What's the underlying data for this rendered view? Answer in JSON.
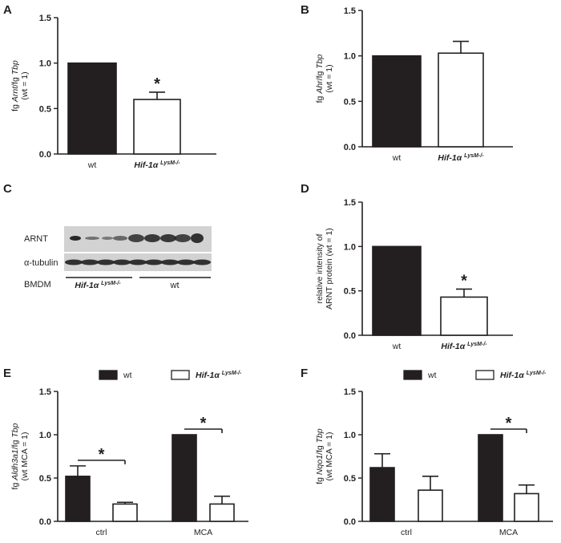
{
  "panel_labels": [
    "A",
    "B",
    "C",
    "D",
    "E",
    "F"
  ],
  "genotype": {
    "base": "Hif-1α",
    "sup": "LysM-/-"
  },
  "chart_data": [
    {
      "panel": "A",
      "type": "bar",
      "categories": [
        "wt",
        "Hif-1α LysM-/-"
      ],
      "values": [
        1.0,
        0.6
      ],
      "errors": [
        0,
        0.08
      ],
      "ylabel_line1": {
        "pre": "fg ",
        "it": "Arnt",
        "mid": "/fg ",
        "it2": "Tbp"
      },
      "ylabel_line2": "(wt = 1)",
      "ylim": [
        0,
        1.5
      ],
      "yticks": [
        "0.0",
        "0.5",
        "1.0",
        "1.5"
      ],
      "significance": [
        {
          "bar": 1,
          "label": "*"
        }
      ]
    },
    {
      "panel": "B",
      "type": "bar",
      "categories": [
        "wt",
        "Hif-1α LysM-/-"
      ],
      "values": [
        1.0,
        1.03
      ],
      "errors": [
        0,
        0.13
      ],
      "ylabel_line1": {
        "pre": "fg ",
        "it": "Ahr",
        "mid": "/fg ",
        "it2": "Tbp"
      },
      "ylabel_line2": "(wt = 1)",
      "ylim": [
        0,
        1.5
      ],
      "yticks": [
        "0.0",
        "0.5",
        "1.0",
        "1.5"
      ],
      "significance": []
    },
    {
      "panel": "D",
      "type": "bar",
      "categories": [
        "wt",
        "Hif-1α LysM-/-"
      ],
      "values": [
        1.0,
        0.43
      ],
      "errors": [
        0,
        0.09
      ],
      "ylabel_line1_plain": "relative intensity of",
      "ylabel_line2": "ARNT protein (wt = 1)",
      "ylim": [
        0,
        1.5
      ],
      "yticks": [
        "0.0",
        "0.5",
        "1.0",
        "1.5"
      ],
      "significance": [
        {
          "bar": 1,
          "label": "*"
        }
      ]
    },
    {
      "panel": "E",
      "type": "bar",
      "categories": [
        "ctrl",
        "MCA"
      ],
      "series": [
        {
          "name": "wt",
          "values": [
            0.52,
            1.0
          ],
          "errors": [
            0.12,
            0
          ]
        },
        {
          "name": "Hif-1α LysM-/-",
          "values": [
            0.2,
            0.2
          ],
          "errors": [
            0.02,
            0.09
          ]
        }
      ],
      "ylabel_line1": {
        "pre": "fg ",
        "it": "Aldh3a1",
        "mid": "/fg ",
        "it2": "Tbp"
      },
      "ylabel_line2": "(wt MCA = 1)",
      "ylim": [
        0,
        1.5
      ],
      "yticks": [
        "0.0",
        "0.5",
        "1.0",
        "1.5"
      ],
      "significance": [
        {
          "group": 0,
          "label": "*"
        },
        {
          "group": 1,
          "label": "*"
        }
      ],
      "legend": "top"
    },
    {
      "panel": "F",
      "type": "bar",
      "categories": [
        "ctrl",
        "MCA"
      ],
      "series": [
        {
          "name": "wt",
          "values": [
            0.62,
            1.0
          ],
          "errors": [
            0.16,
            0
          ]
        },
        {
          "name": "Hif-1α LysM-/-",
          "values": [
            0.36,
            0.32
          ],
          "errors": [
            0.16,
            0.1
          ]
        }
      ],
      "ylabel_line1": {
        "pre": "fg ",
        "it": "Nqo1",
        "mid": "/fg ",
        "it2": "Tbp"
      },
      "ylabel_line2": "(wt MCA = 1)",
      "ylim": [
        0,
        1.5
      ],
      "yticks": [
        "0.0",
        "0.5",
        "1.0",
        "1.5"
      ],
      "significance": [
        {
          "group": 1,
          "label": "*"
        }
      ],
      "legend": "top"
    }
  ],
  "western_blot": {
    "rows": [
      "ARNT",
      "α-tubulin"
    ],
    "row_label_group": "BMDM",
    "groups": [
      "Hif-1α LysM-/-",
      "wt"
    ],
    "colors": {
      "panel": "#d2d2d2",
      "band": "#1f1f1f"
    }
  },
  "colors": {
    "wt": "#231f20",
    "ko": "#ffffff",
    "axis": "#231f20"
  }
}
